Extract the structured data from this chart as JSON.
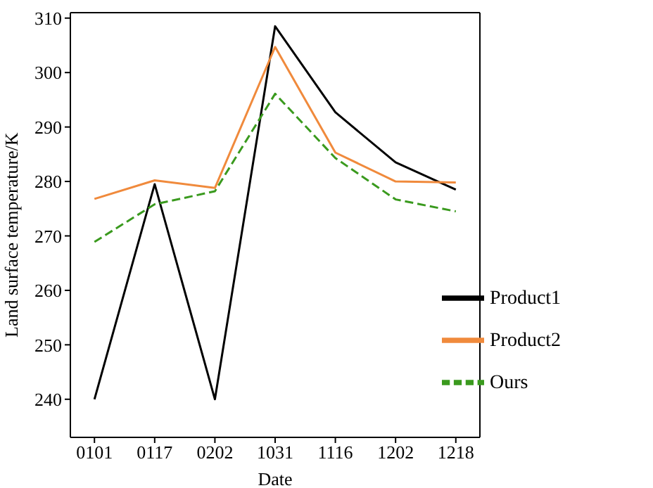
{
  "chart_data": {
    "type": "line",
    "xlabel": "Date",
    "ylabel": "Land surface temperature/K",
    "categories": [
      "0101",
      "0117",
      "0202",
      "1031",
      "1116",
      "1202",
      "1218"
    ],
    "series": [
      {
        "name": "Product1",
        "color": "#000000",
        "values": [
          240,
          279.5,
          240,
          308.5,
          292.7,
          283.5,
          278.5
        ]
      },
      {
        "name": "Product2",
        "color": "#f08a3c",
        "values": [
          276.8,
          280.2,
          278.8,
          304.7,
          285.3,
          280,
          279.8
        ]
      },
      {
        "name": "Ours",
        "color": "#3a9a1e",
        "values": [
          268.9,
          275.8,
          278.2,
          296.1,
          284.3,
          276.7,
          274.5
        ],
        "line_style": "dashed"
      }
    ],
    "ylim": [
      233,
      311
    ],
    "yticks": [
      240,
      250,
      260,
      270,
      280,
      290,
      300,
      310
    ],
    "grid": false,
    "legend": "bottom right",
    "marker": "none"
  }
}
